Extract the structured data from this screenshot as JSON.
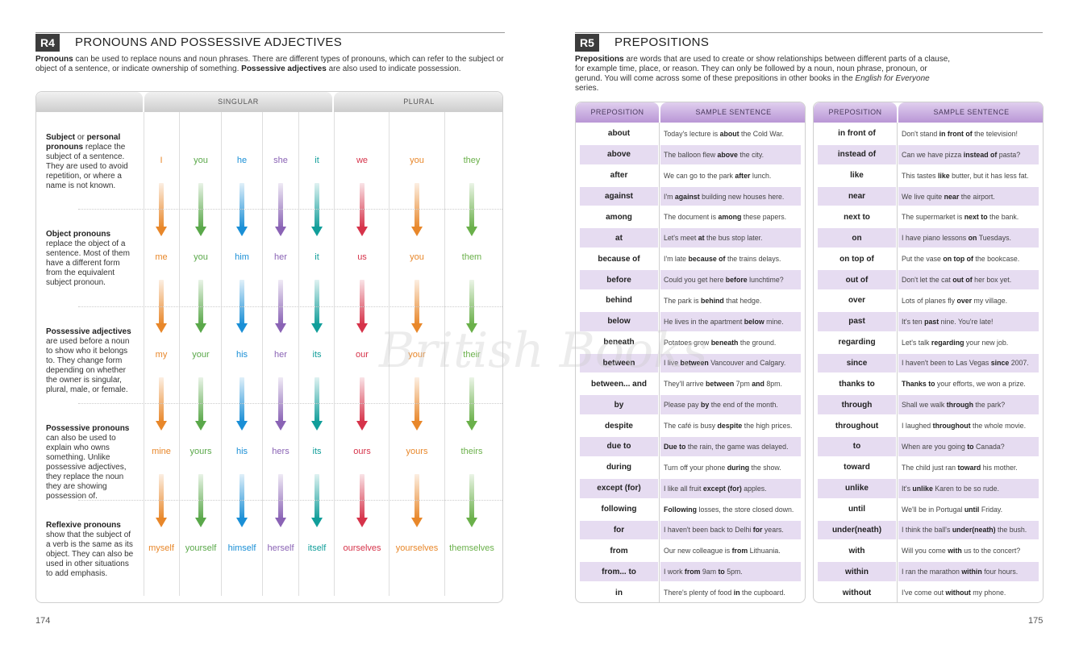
{
  "left_page": {
    "code": "R4",
    "title": "PRONOUNS AND POSSESSIVE ADJECTIVES",
    "intro_parts": [
      {
        "text": "Pronouns",
        "bold": true
      },
      {
        "text": " can be used to replace nouns and noun phrases. There are different types of pronouns, which can refer to the subject or object of a sentence, or indicate ownership of something. ",
        "bold": false
      },
      {
        "text": "Possessive adjectives",
        "bold": true
      },
      {
        "text": " are also used to indicate possession.",
        "bold": false
      }
    ],
    "header_singular": "SINGULAR",
    "header_plural": "PLURAL",
    "page_number": "174",
    "columns": [
      "I",
      "you",
      "he",
      "she",
      "it",
      "we",
      "you",
      "they"
    ],
    "colors": [
      "#e8872a",
      "#5aa84a",
      "#1a8fd6",
      "#8a63b5",
      "#119e9a",
      "#d6334a",
      "#e8872a",
      "#6ab04a"
    ],
    "rows": [
      {
        "desc": [
          {
            "text": "Subject",
            "bold": true
          },
          {
            "text": " or ",
            "bold": false
          },
          {
            "text": "personal pronouns",
            "bold": true
          },
          {
            "text": " replace the subject of a sentence. They are used to avoid repetition, or where a name is not known.",
            "bold": false
          }
        ],
        "words": [
          "I",
          "you",
          "he",
          "she",
          "it",
          "we",
          "you",
          "they"
        ]
      },
      {
        "desc": [
          {
            "text": "Object pronouns",
            "bold": true
          },
          {
            "text": " replace the object of a sentence. Most of them have a different form from the equivalent subject pronoun.",
            "bold": false
          }
        ],
        "words": [
          "me",
          "you",
          "him",
          "her",
          "it",
          "us",
          "you",
          "them"
        ]
      },
      {
        "desc": [
          {
            "text": "Possessive adjectives",
            "bold": true
          },
          {
            "text": " are used before a noun to show who it belongs to. They change form depending on whether the owner is singular, plural, male, or female.",
            "bold": false
          }
        ],
        "words": [
          "my",
          "your",
          "his",
          "her",
          "its",
          "our",
          "your",
          "their"
        ]
      },
      {
        "desc": [
          {
            "text": "Possessive pronouns",
            "bold": true
          },
          {
            "text": " can also be used to explain who owns something. Unlike possessive adjectives, they replace the noun they are showing possession of.",
            "bold": false
          }
        ],
        "words": [
          "mine",
          "yours",
          "his",
          "hers",
          "its",
          "ours",
          "yours",
          "theirs"
        ]
      },
      {
        "desc": [
          {
            "text": "Reflexive pronouns",
            "bold": true
          },
          {
            "text": " show that the subject of a verb is the same as its object. They can also be used in other situations to add emphasis.",
            "bold": false
          }
        ],
        "words": [
          "myself",
          "yourself",
          "himself",
          "herself",
          "itself",
          "ourselves",
          "yourselves",
          "themselves"
        ]
      }
    ]
  },
  "right_page": {
    "code": "R5",
    "title": "PREPOSITIONS",
    "intro_parts": [
      {
        "text": "Prepositions",
        "bold": true,
        "italic": false
      },
      {
        "text": " are words that are used to create or show relationships between different parts of a clause, for example time, place, or reason. They can only be followed by a noun, noun phrase, pronoun, or gerund. You will come across some of these prepositions in other books in the ",
        "bold": false,
        "italic": false
      },
      {
        "text": "English for Everyone",
        "bold": false,
        "italic": true
      },
      {
        "text": " series.",
        "bold": false,
        "italic": false
      }
    ],
    "col_preposition": "PREPOSITION",
    "col_sample": "SAMPLE SENTENCE",
    "page_number": "175",
    "watermark": "British Books",
    "tables": [
      [
        [
          "about",
          [
            [
              "Today's lecture is ",
              0
            ],
            [
              "about",
              1
            ],
            [
              " the Cold War.",
              0
            ]
          ]
        ],
        [
          "above",
          [
            [
              "The balloon flew ",
              0
            ],
            [
              "above",
              1
            ],
            [
              " the city.",
              0
            ]
          ]
        ],
        [
          "after",
          [
            [
              "We can go to the park ",
              0
            ],
            [
              "after",
              1
            ],
            [
              " lunch.",
              0
            ]
          ]
        ],
        [
          "against",
          [
            [
              "I'm ",
              0
            ],
            [
              "against",
              1
            ],
            [
              " building new houses here.",
              0
            ]
          ]
        ],
        [
          "among",
          [
            [
              "The document is ",
              0
            ],
            [
              "among",
              1
            ],
            [
              " these papers.",
              0
            ]
          ]
        ],
        [
          "at",
          [
            [
              "Let's meet ",
              0
            ],
            [
              "at",
              1
            ],
            [
              " the bus stop later.",
              0
            ]
          ]
        ],
        [
          "because of",
          [
            [
              "I'm late ",
              0
            ],
            [
              "because of",
              1
            ],
            [
              " the trains delays.",
              0
            ]
          ]
        ],
        [
          "before",
          [
            [
              "Could you get here ",
              0
            ],
            [
              "before",
              1
            ],
            [
              " lunchtime?",
              0
            ]
          ]
        ],
        [
          "behind",
          [
            [
              "The park is ",
              0
            ],
            [
              "behind",
              1
            ],
            [
              " that hedge.",
              0
            ]
          ]
        ],
        [
          "below",
          [
            [
              "He lives in the apartment ",
              0
            ],
            [
              "below",
              1
            ],
            [
              " mine.",
              0
            ]
          ]
        ],
        [
          "beneath",
          [
            [
              "Potatoes grow ",
              0
            ],
            [
              "beneath",
              1
            ],
            [
              " the ground.",
              0
            ]
          ]
        ],
        [
          "between",
          [
            [
              "I live ",
              0
            ],
            [
              "between",
              1
            ],
            [
              " Vancouver and Calgary.",
              0
            ]
          ]
        ],
        [
          "between... and",
          [
            [
              "They'll arrive ",
              0
            ],
            [
              "between",
              1
            ],
            [
              " 7pm ",
              0
            ],
            [
              "and",
              1
            ],
            [
              " 8pm.",
              0
            ]
          ]
        ],
        [
          "by",
          [
            [
              "Please pay ",
              0
            ],
            [
              "by",
              1
            ],
            [
              " the end of the month.",
              0
            ]
          ]
        ],
        [
          "despite",
          [
            [
              "The café is busy ",
              0
            ],
            [
              "despite",
              1
            ],
            [
              " the high prices.",
              0
            ]
          ]
        ],
        [
          "due to",
          [
            [
              "Due to",
              1
            ],
            [
              " the rain, the game was delayed.",
              0
            ]
          ]
        ],
        [
          "during",
          [
            [
              "Turn off your phone ",
              0
            ],
            [
              "during",
              1
            ],
            [
              " the show.",
              0
            ]
          ]
        ],
        [
          "except (for)",
          [
            [
              "I like all fruit ",
              0
            ],
            [
              "except (for)",
              1
            ],
            [
              " apples.",
              0
            ]
          ]
        ],
        [
          "following",
          [
            [
              "Following",
              1
            ],
            [
              " losses, the store closed down.",
              0
            ]
          ]
        ],
        [
          "for",
          [
            [
              "I haven't been back to Delhi ",
              0
            ],
            [
              "for",
              1
            ],
            [
              " years.",
              0
            ]
          ]
        ],
        [
          "from",
          [
            [
              "Our new colleague is ",
              0
            ],
            [
              "from",
              1
            ],
            [
              " Lithuania.",
              0
            ]
          ]
        ],
        [
          "from... to",
          [
            [
              "I work ",
              0
            ],
            [
              "from",
              1
            ],
            [
              " 9am ",
              0
            ],
            [
              "to",
              1
            ],
            [
              " 5pm.",
              0
            ]
          ]
        ],
        [
          "in",
          [
            [
              "There's plenty of food ",
              0
            ],
            [
              "in",
              1
            ],
            [
              " the cupboard.",
              0
            ]
          ]
        ]
      ],
      [
        [
          "in front of",
          [
            [
              "Don't stand ",
              0
            ],
            [
              "in front of",
              1
            ],
            [
              " the television!",
              0
            ]
          ]
        ],
        [
          "instead of",
          [
            [
              "Can we have pizza ",
              0
            ],
            [
              "instead of",
              1
            ],
            [
              " pasta?",
              0
            ]
          ]
        ],
        [
          "like",
          [
            [
              "This tastes ",
              0
            ],
            [
              "like",
              1
            ],
            [
              " butter, but it has less fat.",
              0
            ]
          ]
        ],
        [
          "near",
          [
            [
              "We live quite ",
              0
            ],
            [
              "near",
              1
            ],
            [
              " the airport.",
              0
            ]
          ]
        ],
        [
          "next to",
          [
            [
              "The supermarket is ",
              0
            ],
            [
              "next to",
              1
            ],
            [
              " the bank.",
              0
            ]
          ]
        ],
        [
          "on",
          [
            [
              "I have piano lessons ",
              0
            ],
            [
              "on",
              1
            ],
            [
              " Tuesdays.",
              0
            ]
          ]
        ],
        [
          "on top of",
          [
            [
              "Put the vase ",
              0
            ],
            [
              "on top of",
              1
            ],
            [
              " the bookcase.",
              0
            ]
          ]
        ],
        [
          "out of",
          [
            [
              "Don't let the cat ",
              0
            ],
            [
              "out of",
              1
            ],
            [
              " her box yet.",
              0
            ]
          ]
        ],
        [
          "over",
          [
            [
              "Lots of planes fly ",
              0
            ],
            [
              "over",
              1
            ],
            [
              " my village.",
              0
            ]
          ]
        ],
        [
          "past",
          [
            [
              "It's ten ",
              0
            ],
            [
              "past",
              1
            ],
            [
              " nine. You're late!",
              0
            ]
          ]
        ],
        [
          "regarding",
          [
            [
              "Let's talk ",
              0
            ],
            [
              "regarding",
              1
            ],
            [
              " your new job.",
              0
            ]
          ]
        ],
        [
          "since",
          [
            [
              "I haven't been to Las Vegas ",
              0
            ],
            [
              "since",
              1
            ],
            [
              " 2007.",
              0
            ]
          ]
        ],
        [
          "thanks to",
          [
            [
              "Thanks to",
              1
            ],
            [
              " your efforts, we won a prize.",
              0
            ]
          ]
        ],
        [
          "through",
          [
            [
              "Shall we walk ",
              0
            ],
            [
              "through",
              1
            ],
            [
              " the park?",
              0
            ]
          ]
        ],
        [
          "throughout",
          [
            [
              "I laughed ",
              0
            ],
            [
              "throughout",
              1
            ],
            [
              " the whole movie.",
              0
            ]
          ]
        ],
        [
          "to",
          [
            [
              "When are you going ",
              0
            ],
            [
              "to",
              1
            ],
            [
              " Canada?",
              0
            ]
          ]
        ],
        [
          "toward",
          [
            [
              "The child just ran ",
              0
            ],
            [
              "toward",
              1
            ],
            [
              " his mother.",
              0
            ]
          ]
        ],
        [
          "unlike",
          [
            [
              "It's ",
              0
            ],
            [
              "unlike",
              1
            ],
            [
              " Karen to be so rude.",
              0
            ]
          ]
        ],
        [
          "until",
          [
            [
              "We'll be in Portugal ",
              0
            ],
            [
              "until",
              1
            ],
            [
              " Friday.",
              0
            ]
          ]
        ],
        [
          "under(neath)",
          [
            [
              "I think the ball's ",
              0
            ],
            [
              "under(neath)",
              1
            ],
            [
              " the bush.",
              0
            ]
          ]
        ],
        [
          "with",
          [
            [
              "Will you come ",
              0
            ],
            [
              "with",
              1
            ],
            [
              " us to the concert?",
              0
            ]
          ]
        ],
        [
          "within",
          [
            [
              "I ran the marathon ",
              0
            ],
            [
              "within",
              1
            ],
            [
              " four hours.",
              0
            ]
          ]
        ],
        [
          "without",
          [
            [
              "I've come out ",
              0
            ],
            [
              "without",
              1
            ],
            [
              " my phone.",
              0
            ]
          ]
        ]
      ]
    ]
  }
}
